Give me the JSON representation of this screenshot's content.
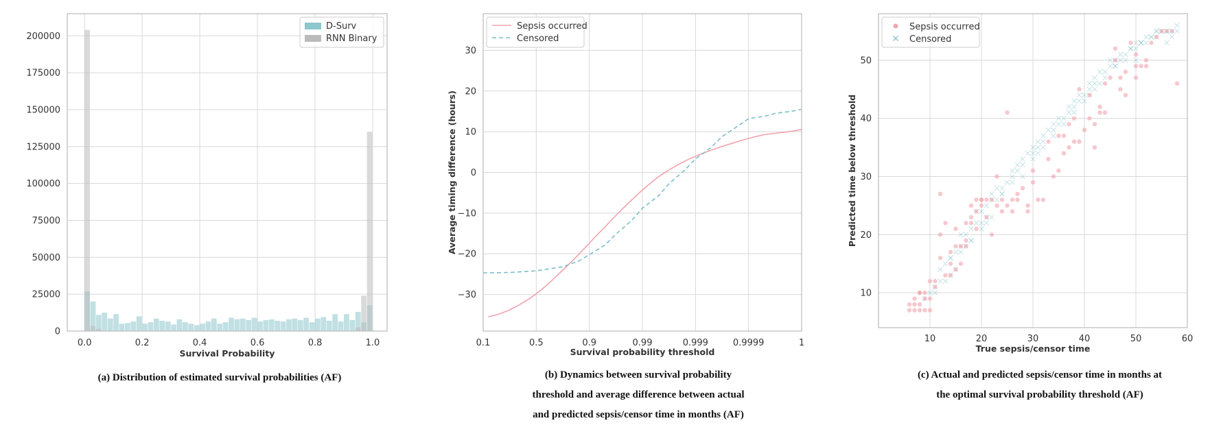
{
  "colors": {
    "dsurv": "#8ec7cc",
    "rnn": "#bbbbbb",
    "sepsis": "#f0a3ad",
    "censored": "#7cbfc9",
    "grid": "#d8d8d8",
    "frame": "#bbbbbb"
  },
  "captions": {
    "a": [
      "(a) Distribution of estimated survival probabilities (AF)"
    ],
    "b": [
      "(b) Dynamics between survival probability",
      "threshold and  average difference between actual",
      "and predicted sepsis/censor time in months (AF)"
    ],
    "c": [
      "(c) Actual and predicted sepsis/censor time in months at",
      "the optimal survival probability threshold (AF)"
    ]
  },
  "chart_data": [
    {
      "type": "bar",
      "xlabel": "Survival Probability",
      "ylabel": "",
      "xlim": [
        -0.06,
        1.05
      ],
      "ylim": [
        0,
        215000
      ],
      "xticks": [
        0.0,
        0.2,
        0.4,
        0.6,
        0.8,
        1.0
      ],
      "xtick_labels": [
        "0.0",
        "0.2",
        "0.4",
        "0.6",
        "0.8",
        "1.0"
      ],
      "yticks": [
        0,
        25000,
        50000,
        75000,
        100000,
        125000,
        150000,
        175000,
        200000
      ],
      "ytick_labels": [
        "0",
        "25000",
        "50000",
        "75000",
        "100000",
        "125000",
        "150000",
        "175000",
        "200000"
      ],
      "grid": true,
      "legend_placement": "top-right",
      "bin_width": 0.02,
      "series": [
        {
          "name": "D-Surv",
          "color": "#8ec7cc",
          "bin_starts": [
            0.0,
            0.02,
            0.04,
            0.06,
            0.08,
            0.1,
            0.12,
            0.14,
            0.16,
            0.18,
            0.2,
            0.22,
            0.24,
            0.26,
            0.28,
            0.3,
            0.32,
            0.34,
            0.36,
            0.38,
            0.4,
            0.42,
            0.44,
            0.46,
            0.48,
            0.5,
            0.52,
            0.54,
            0.56,
            0.58,
            0.6,
            0.62,
            0.64,
            0.66,
            0.68,
            0.7,
            0.72,
            0.74,
            0.76,
            0.78,
            0.8,
            0.82,
            0.84,
            0.86,
            0.88,
            0.9,
            0.92,
            0.94,
            0.96,
            0.98
          ],
          "values": [
            27000,
            20000,
            11000,
            12500,
            8500,
            11500,
            5000,
            5500,
            6500,
            10000,
            5000,
            6000,
            8500,
            7000,
            6500,
            4500,
            8000,
            6000,
            5000,
            4000,
            5000,
            6500,
            8500,
            5000,
            6000,
            9000,
            8000,
            8500,
            7500,
            9000,
            6500,
            7500,
            8000,
            7000,
            6500,
            8000,
            8500,
            7500,
            9000,
            6000,
            8500,
            9500,
            7000,
            11500,
            6500,
            11500,
            7500,
            13000,
            6000,
            17500
          ]
        },
        {
          "name": "RNN Binary",
          "color": "#bbbbbb",
          "bin_starts": [
            0.0,
            0.02,
            0.04,
            0.94,
            0.96,
            0.98
          ],
          "values": [
            204000,
            3500,
            1500,
            2500,
            24000,
            135000
          ]
        }
      ]
    },
    {
      "type": "line",
      "xlabel": "Survival probability threshold",
      "ylabel": "Average timing difference (hours)",
      "categories": [
        "0.1",
        "0.5",
        "0.9",
        "0.99",
        "0.999",
        "0.9999",
        "1"
      ],
      "ylim": [
        -39,
        39
      ],
      "yticks": [
        -30,
        -20,
        -10,
        0,
        10,
        20,
        30
      ],
      "ytick_labels": [
        "−30",
        "−20",
        "−10",
        "0",
        "10",
        "20",
        "30"
      ],
      "grid": true,
      "legend_placement": "top-left",
      "series": [
        {
          "name": "Sepsis occurred",
          "color": "#f0a3ad",
          "dash": "solid",
          "x": [
            0.1,
            0.3,
            0.5,
            0.7,
            0.9,
            1.1,
            1.3,
            1.5,
            1.7,
            1.9,
            2.1,
            2.3,
            2.5,
            2.7,
            2.9,
            3.1,
            3.3,
            3.5,
            3.7,
            3.9,
            4.1,
            4.3,
            4.5,
            4.7,
            4.9,
            5.1,
            5.3,
            5.5,
            5.7,
            5.9,
            6.0
          ],
          "y": [
            -35.5,
            -34.8,
            -33.8,
            -32.4,
            -30.8,
            -28.8,
            -26.5,
            -24.0,
            -21.5,
            -18.8,
            -16.0,
            -13.3,
            -10.6,
            -8.0,
            -5.5,
            -3.2,
            -1.1,
            0.6,
            2.1,
            3.4,
            4.5,
            5.5,
            6.4,
            7.2,
            8.0,
            8.7,
            9.3,
            9.6,
            9.9,
            10.3,
            10.6
          ]
        },
        {
          "name": "Censored",
          "color": "#7cbfc9",
          "dash": "dashed",
          "x": [
            0.0,
            0.5,
            1.0,
            1.5,
            1.8,
            2.0,
            2.3,
            2.5,
            2.8,
            3.0,
            3.3,
            3.5,
            3.8,
            4.0,
            4.3,
            4.5,
            4.8,
            5.0,
            5.3,
            5.5,
            5.8,
            6.0
          ],
          "y": [
            -24.7,
            -24.6,
            -24.2,
            -23.2,
            -21.8,
            -20.2,
            -17.8,
            -15.2,
            -11.8,
            -8.8,
            -5.8,
            -2.8,
            0.6,
            3.3,
            6.2,
            8.8,
            11.4,
            13.2,
            13.8,
            14.5,
            15.0,
            15.5
          ]
        }
      ]
    },
    {
      "type": "scatter",
      "xlabel": "True sepsis/censor time",
      "ylabel": "Predicted time below threshold",
      "xlim": [
        0,
        60
      ],
      "ylim": [
        4,
        58
      ],
      "xticks": [
        10,
        20,
        30,
        40,
        50,
        60
      ],
      "xtick_labels": [
        "10",
        "20",
        "30",
        "40",
        "50",
        "60"
      ],
      "yticks": [
        10,
        20,
        30,
        40,
        50
      ],
      "ytick_labels": [
        "10",
        "20",
        "30",
        "40",
        "50"
      ],
      "grid": true,
      "legend_placement": "top-left",
      "series": [
        {
          "name": "Sepsis occurred",
          "marker": "circle",
          "color": "#f0a3ad",
          "x": [
            6,
            7,
            8,
            9,
            10,
            6,
            7,
            8,
            9,
            10,
            7,
            8,
            9,
            11,
            12,
            8,
            10,
            13,
            14,
            15,
            12,
            14,
            16,
            17,
            15,
            17,
            18,
            19,
            20,
            18,
            19,
            20,
            21,
            22,
            24,
            26,
            25,
            27,
            29,
            31,
            32,
            24,
            29,
            34,
            35,
            33,
            36,
            37,
            38,
            36,
            40,
            42,
            41,
            43,
            39,
            44,
            45,
            47,
            48,
            50,
            51,
            52,
            46,
            49,
            50,
            54,
            55,
            58,
            12,
            13,
            14,
            16,
            17,
            19,
            21,
            23,
            26,
            27,
            28,
            30,
            35,
            38,
            41,
            44,
            47,
            50,
            53,
            56,
            11,
            15,
            18,
            22,
            25,
            30,
            33,
            37,
            42,
            46,
            48,
            52,
            57,
            20,
            23,
            39,
            43
          ],
          "y": [
            7,
            7,
            7,
            7,
            7,
            8,
            8,
            8,
            9,
            9,
            9,
            10,
            10,
            11,
            27,
            10,
            12,
            13,
            15,
            14,
            16,
            17,
            18,
            19,
            21,
            22,
            23,
            24,
            25,
            25,
            26,
            26,
            26,
            26,
            26,
            26,
            41,
            26,
            25,
            26,
            26,
            24,
            24,
            30,
            31,
            33,
            34,
            35,
            36,
            37,
            38,
            39,
            40,
            42,
            45,
            46,
            47,
            47,
            48,
            49,
            49,
            50,
            52,
            53,
            47,
            54,
            55,
            46,
            20,
            22,
            13,
            15,
            18,
            21,
            23,
            25,
            24,
            27,
            28,
            29,
            37,
            40,
            44,
            41,
            45,
            51,
            53,
            55,
            12,
            18,
            22,
            20,
            25,
            31,
            36,
            39,
            35,
            50,
            44,
            49,
            55,
            26,
            30,
            36,
            41
          ]
        },
        {
          "name": "Censored",
          "marker": "x",
          "color": "#7cbfc9",
          "x": [
            9,
            10,
            11,
            12,
            13,
            14,
            15,
            12,
            13,
            14,
            15,
            16,
            17,
            18,
            16,
            17,
            18,
            19,
            20,
            21,
            19,
            20,
            21,
            22,
            23,
            24,
            22,
            23,
            24,
            25,
            26,
            27,
            28,
            26,
            27,
            28,
            29,
            30,
            31,
            32,
            30,
            31,
            32,
            33,
            34,
            35,
            34,
            35,
            36,
            37,
            38,
            39,
            37,
            38,
            39,
            40,
            41,
            42,
            43,
            41,
            42,
            43,
            44,
            45,
            46,
            47,
            45,
            46,
            47,
            48,
            49,
            50,
            51,
            49,
            50,
            51,
            52,
            53,
            54,
            55,
            53,
            54,
            55,
            56,
            57,
            58,
            56,
            57,
            58,
            14,
            18,
            22,
            26,
            30,
            34,
            38,
            42,
            46,
            50,
            54,
            16,
            20,
            24,
            28,
            32,
            36,
            40,
            44,
            48,
            52,
            56,
            11,
            21,
            31,
            41,
            51
          ],
          "y": [
            9,
            10,
            11,
            12,
            12,
            13,
            14,
            14,
            15,
            16,
            17,
            17,
            18,
            19,
            20,
            20,
            21,
            22,
            22,
            23,
            24,
            24,
            25,
            26,
            26,
            27,
            27,
            28,
            28,
            29,
            30,
            31,
            32,
            31,
            32,
            33,
            34,
            34,
            35,
            36,
            35,
            36,
            37,
            38,
            38,
            39,
            39,
            40,
            40,
            41,
            42,
            43,
            42,
            43,
            44,
            44,
            45,
            46,
            46,
            46,
            47,
            48,
            48,
            49,
            49,
            50,
            50,
            50,
            51,
            51,
            52,
            52,
            53,
            52,
            53,
            53,
            54,
            54,
            55,
            55,
            54,
            55,
            55,
            55,
            55,
            56,
            53,
            54,
            55,
            16,
            19,
            23,
            29,
            33,
            37,
            41,
            45,
            49,
            50,
            54,
            18,
            21,
            27,
            30,
            35,
            39,
            43,
            47,
            50,
            53,
            55,
            10,
            22,
            34,
            44,
            53
          ]
        }
      ]
    }
  ]
}
